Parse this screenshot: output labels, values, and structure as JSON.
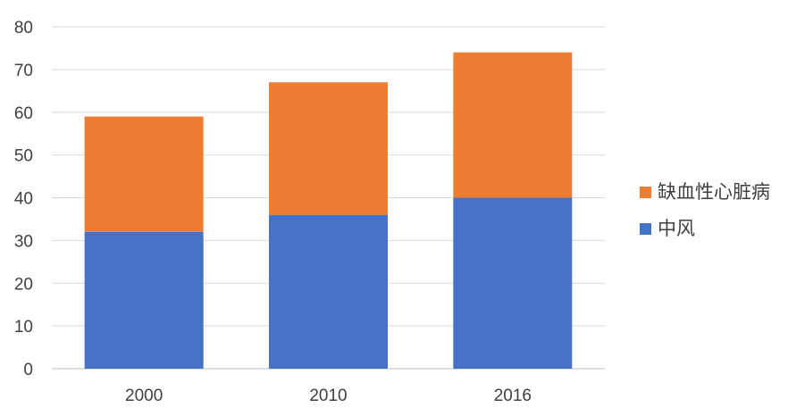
{
  "chart_data": {
    "type": "bar",
    "stacked": true,
    "title": "",
    "xlabel": "",
    "ylabel": "",
    "categories": [
      "2000",
      "2010",
      "2016"
    ],
    "series": [
      {
        "name": "中风",
        "values": [
          32,
          36,
          40
        ],
        "color": "#4472C4"
      },
      {
        "name": "缺血性心脏病",
        "values": [
          27,
          31,
          34
        ],
        "color": "#ED7D31"
      }
    ],
    "ylim": [
      0,
      80
    ],
    "yticks": [
      0,
      10,
      20,
      30,
      40,
      50,
      60,
      70,
      80
    ],
    "grid": true,
    "legend_position": "right"
  }
}
